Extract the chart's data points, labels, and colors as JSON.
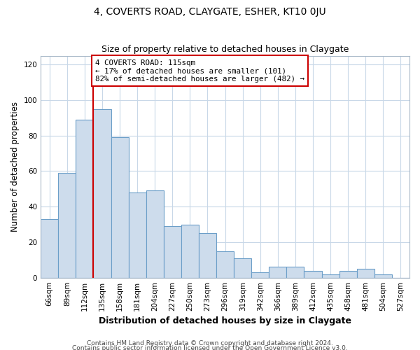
{
  "title": "4, COVERTS ROAD, CLAYGATE, ESHER, KT10 0JU",
  "subtitle": "Size of property relative to detached houses in Claygate",
  "xlabel": "Distribution of detached houses by size in Claygate",
  "ylabel": "Number of detached properties",
  "categories": [
    "66sqm",
    "89sqm",
    "112sqm",
    "135sqm",
    "158sqm",
    "181sqm",
    "204sqm",
    "227sqm",
    "250sqm",
    "273sqm",
    "296sqm",
    "319sqm",
    "342sqm",
    "366sqm",
    "389sqm",
    "412sqm",
    "435sqm",
    "458sqm",
    "481sqm",
    "504sqm",
    "527sqm"
  ],
  "values": [
    33,
    59,
    89,
    95,
    79,
    48,
    49,
    29,
    30,
    25,
    15,
    11,
    3,
    6,
    6,
    4,
    2,
    4,
    5,
    2,
    0
  ],
  "bar_color": "#cddcec",
  "bar_edge_color": "#6b9ec8",
  "vline_color": "#cc0000",
  "annotation_text": "4 COVERTS ROAD: 115sqm\n← 17% of detached houses are smaller (101)\n82% of semi-detached houses are larger (482) →",
  "annotation_box_color": "#ffffff",
  "annotation_box_edge": "#cc0000",
  "ylim": [
    0,
    125
  ],
  "yticks": [
    0,
    20,
    40,
    60,
    80,
    100,
    120
  ],
  "footer1": "Contains HM Land Registry data © Crown copyright and database right 2024.",
  "footer2": "Contains public sector information licensed under the Open Government Licence v3.0."
}
